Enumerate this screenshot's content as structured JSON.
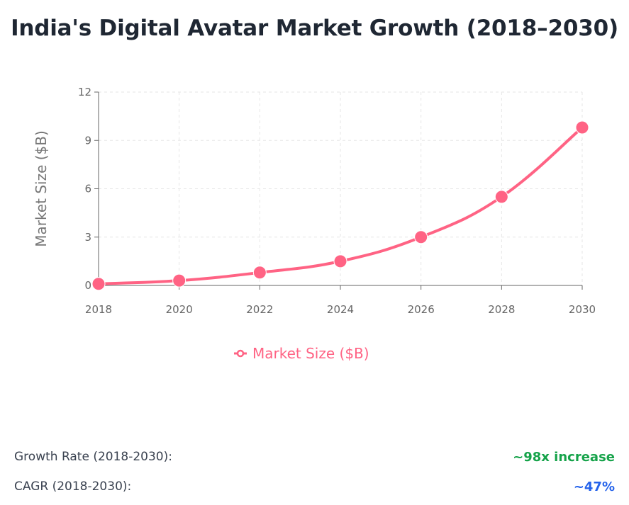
{
  "page": {
    "title": "India's Digital Avatar Market Growth (2018–2030)"
  },
  "chart_data": {
    "type": "line",
    "title": "India's Digital Avatar Market Growth (2018–2030)",
    "ylabel": "Market Size ($B)",
    "xlabel": "",
    "x": [
      "2018",
      "2020",
      "2022",
      "2024",
      "2026",
      "2028",
      "2030"
    ],
    "series": [
      {
        "name": "Market Size ($B)",
        "values": [
          0.1,
          0.3,
          0.8,
          1.5,
          3.0,
          5.5,
          9.8
        ],
        "color": "#ff6384"
      }
    ],
    "ylim": [
      0,
      12
    ],
    "yticks": [
      "0",
      "3",
      "6",
      "9",
      "12"
    ],
    "grid": true,
    "legend": "bottom"
  },
  "stats": [
    {
      "label": "Growth Rate (2018-2030):",
      "value": "~98x increase",
      "color": "#16a34a"
    },
    {
      "label": "CAGR (2018-2030):",
      "value": "~47%",
      "color": "#2563eb"
    }
  ]
}
